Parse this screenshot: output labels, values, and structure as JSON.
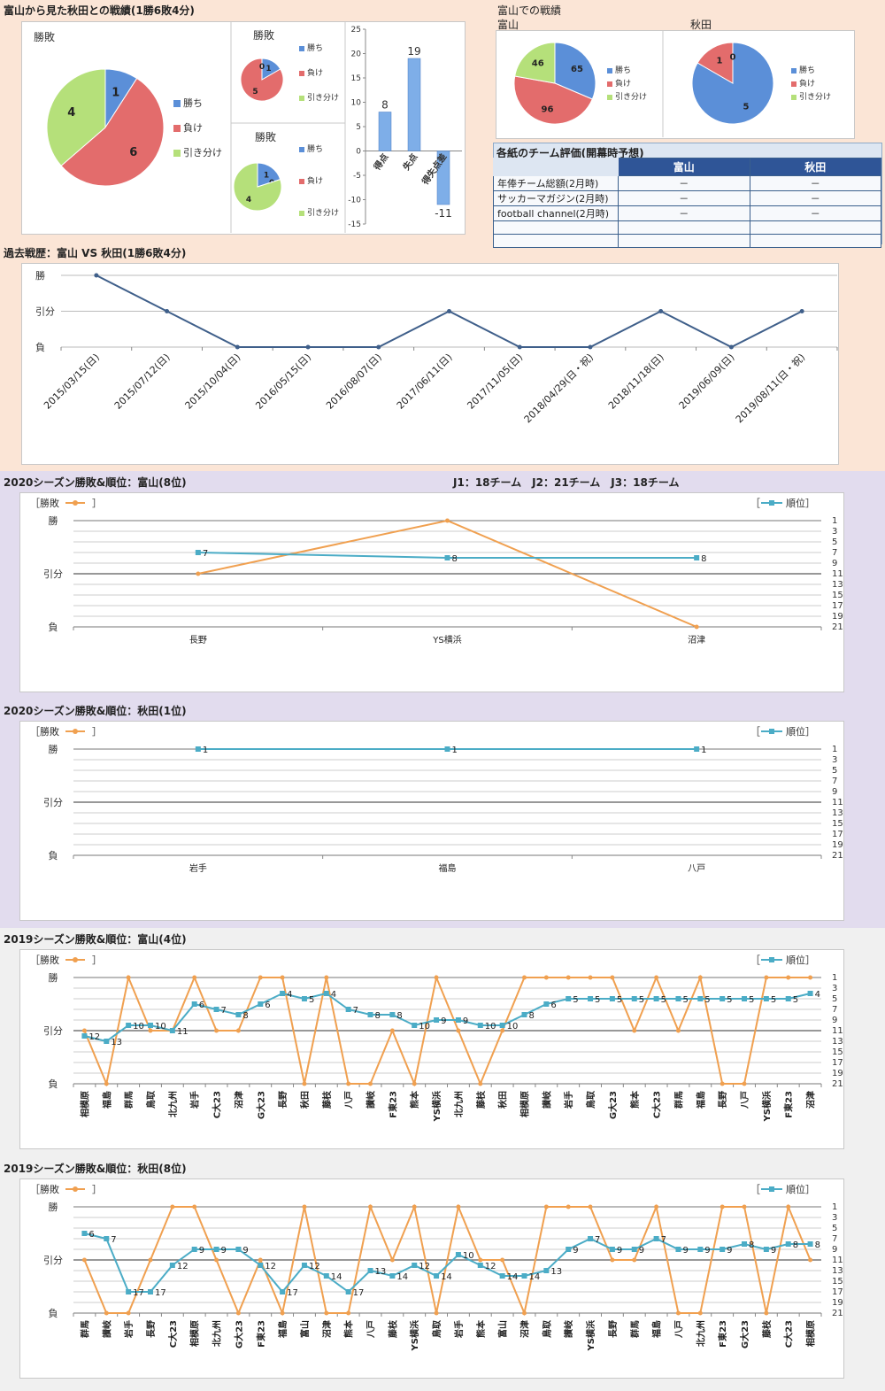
{
  "sections": {
    "h2h_title": "富山から見た秋田との戦績(1勝6敗4分)",
    "home_title": "富山での戦績",
    "home_toyama": "富山",
    "home_akita": "秋田",
    "eval_title": "各紙のチーム評価(開幕時予想)",
    "history_title": "過去戦歴：富山 VS 秋田(1勝6敗4分)",
    "s2020_toyama_title": "2020シーズン勝敗&順位：富山(8位)",
    "league_info": "J1：18チーム　J2：21チーム　J3：18チーム",
    "s2020_akita_title": "2020シーズン勝敗&順位：秋田(1位)",
    "s2019_toyama_title": "2019シーズン勝敗&順位：富山(4位)",
    "s2019_akita_title": "2019シーズン勝敗&順位：秋田(8位)"
  },
  "legend": {
    "win": "勝ち",
    "lose": "負け",
    "draw": "引き分け",
    "result_label": "［勝敗",
    "result_close": "］",
    "rank_open": "［",
    "rank_label": "順位］"
  },
  "colors": {
    "win": "#5b8fd8",
    "lose": "#e36c6c",
    "draw": "#b5e07a",
    "orange": "#f0a050",
    "teal": "#4bacc6",
    "navy": "#3f5f8a"
  },
  "eval_table": {
    "headers": [
      "",
      "富山",
      "秋田"
    ],
    "rows": [
      [
        "年俸チーム総額(2月時)",
        "－",
        "－"
      ],
      [
        "サッカーマガジン(2月時)",
        "－",
        "－"
      ],
      [
        "football channel(2月時)",
        "－",
        "－"
      ],
      [
        "",
        "",
        ""
      ],
      [
        "",
        "",
        ""
      ]
    ]
  },
  "chart_data": [
    {
      "id": "h2h_pie_main",
      "type": "pie",
      "title": "勝敗",
      "labels": [
        "勝ち",
        "負け",
        "引き分け"
      ],
      "values": [
        1,
        6,
        4
      ]
    },
    {
      "id": "h2h_pie_small1",
      "type": "pie",
      "title": "勝敗",
      "labels": [
        "勝ち",
        "負け",
        "引き分け"
      ],
      "values": [
        1,
        5,
        0
      ]
    },
    {
      "id": "h2h_pie_small2",
      "type": "pie",
      "title": "勝敗",
      "labels": [
        "勝ち",
        "負け",
        "引き分け"
      ],
      "values": [
        1,
        0,
        4
      ]
    },
    {
      "id": "goals_bar",
      "type": "bar",
      "categories": [
        "得点",
        "失点",
        "得失点差"
      ],
      "values": [
        8,
        19,
        -11
      ],
      "ylim": [
        -15,
        25
      ],
      "yticks": [
        "25",
        "20",
        "15",
        "10",
        "5",
        "0",
        "-5",
        "-10",
        "-15"
      ]
    },
    {
      "id": "home_toyama_pie",
      "type": "pie",
      "labels": [
        "勝ち",
        "負け",
        "引き分け"
      ],
      "values": [
        65,
        96,
        46
      ]
    },
    {
      "id": "home_akita_pie",
      "type": "pie",
      "labels": [
        "勝ち",
        "負け",
        "引き分け"
      ],
      "values": [
        5,
        1,
        0
      ]
    },
    {
      "id": "history_line",
      "type": "line",
      "ylabels": [
        "勝",
        "引分",
        "負"
      ],
      "categories": [
        "2015/03/15(日)",
        "2015/07/12(日)",
        "2015/10/04(日)",
        "2016/05/15(日)",
        "2016/08/07(日)",
        "2017/06/11(日)",
        "2017/11/05(日)",
        "2018/04/29(日・祝)",
        "2018/11/18(日)",
        "2019/06/09(日)",
        "2019/08/11(日・祝)"
      ],
      "values": [
        2,
        1,
        0,
        0,
        0,
        1,
        0,
        0,
        1,
        0,
        1
      ]
    },
    {
      "id": "s2020_toyama",
      "type": "line",
      "ylabels": [
        "勝",
        "引分",
        "負"
      ],
      "rank_ticks": [
        "1",
        "3",
        "5",
        "7",
        "9",
        "11",
        "13",
        "15",
        "17",
        "19",
        "21"
      ],
      "categories": [
        "長野",
        "YS横浜",
        "沼津"
      ],
      "results": [
        1,
        2,
        0
      ],
      "ranks": [
        7,
        8,
        8
      ]
    },
    {
      "id": "s2020_akita",
      "type": "line",
      "ylabels": [
        "勝",
        "引分",
        "負"
      ],
      "rank_ticks": [
        "1",
        "3",
        "5",
        "7",
        "9",
        "11",
        "13",
        "15",
        "17",
        "19",
        "21"
      ],
      "categories": [
        "岩手",
        "福島",
        "八戸"
      ],
      "results": [
        2,
        2,
        2
      ],
      "ranks": [
        1,
        1,
        1
      ]
    },
    {
      "id": "s2019_toyama",
      "type": "line",
      "ylabels": [
        "勝",
        "引分",
        "負"
      ],
      "rank_ticks": [
        "1",
        "3",
        "5",
        "7",
        "9",
        "11",
        "13",
        "15",
        "17",
        "19",
        "21"
      ],
      "categories": [
        "相模原",
        "福島",
        "群馬",
        "鳥取",
        "北九州",
        "岩手",
        "C大23",
        "沼津",
        "G大23",
        "長野",
        "秋田",
        "藤枝",
        "八戸",
        "讃岐",
        "F東23",
        "熊本",
        "YS横浜",
        "北九州",
        "藤枝",
        "秋田",
        "相模原",
        "讃岐",
        "岩手",
        "鳥取",
        "G大23",
        "熊本",
        "C大23",
        "群馬",
        "福島",
        "長野",
        "八戸",
        "YS横浜",
        "F東23",
        "沼津"
      ],
      "results": [
        1,
        0,
        2,
        1,
        1,
        2,
        1,
        1,
        2,
        2,
        0,
        2,
        0,
        0,
        1,
        0,
        2,
        1,
        0,
        1,
        2,
        2,
        2,
        2,
        2,
        1,
        2,
        1,
        2,
        0,
        0,
        2,
        2,
        2
      ],
      "ranks": [
        12,
        13,
        10,
        10,
        11,
        6,
        7,
        8,
        6,
        4,
        5,
        4,
        7,
        8,
        8,
        10,
        9,
        9,
        10,
        10,
        8,
        6,
        5,
        5,
        5,
        5,
        5,
        5,
        5,
        5,
        5,
        5,
        5,
        4
      ]
    },
    {
      "id": "s2019_akita",
      "type": "line",
      "ylabels": [
        "勝",
        "引分",
        "負"
      ],
      "rank_ticks": [
        "1",
        "3",
        "5",
        "7",
        "9",
        "11",
        "13",
        "15",
        "17",
        "19",
        "21"
      ],
      "categories": [
        "群馬",
        "讃岐",
        "岩手",
        "長野",
        "C大23",
        "相模原",
        "北九州",
        "G大23",
        "F東23",
        "福島",
        "富山",
        "沼津",
        "熊本",
        "八戸",
        "藤枝",
        "YS横浜",
        "鳥取",
        "岩手",
        "熊本",
        "富山",
        "沼津",
        "鳥取",
        "讃岐",
        "YS横浜",
        "長野",
        "群馬",
        "福島",
        "八戸",
        "北九州",
        "F東23",
        "G大23",
        "藤枝",
        "C大23",
        "相模原"
      ],
      "results": [
        1,
        0,
        0,
        1,
        2,
        2,
        1,
        0,
        1,
        0,
        2,
        0,
        0,
        2,
        1,
        2,
        0,
        2,
        1,
        1,
        0,
        2,
        2,
        2,
        1,
        1,
        2,
        0,
        0,
        2,
        2,
        0,
        2,
        1
      ],
      "ranks": [
        6,
        7,
        17,
        17,
        12,
        9,
        9,
        9,
        12,
        17,
        12,
        14,
        17,
        13,
        14,
        12,
        14,
        10,
        12,
        14,
        14,
        13,
        9,
        7,
        9,
        9,
        7,
        9,
        9,
        9,
        8,
        9,
        8,
        8
      ]
    }
  ]
}
